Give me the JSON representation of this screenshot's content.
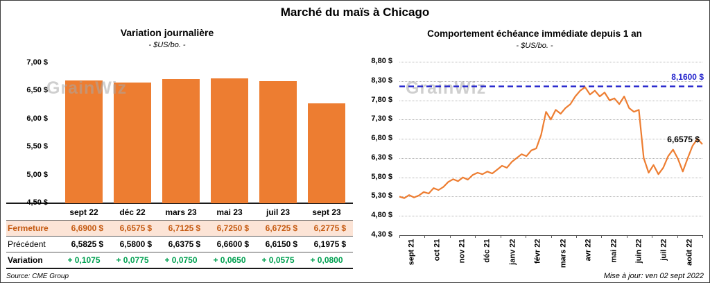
{
  "title": "Marché du maïs à Chicago",
  "watermark": "GrainWiz",
  "footer": {
    "source": "Source: CME Group",
    "updated": "Mise à jour: ven 02 sept 2022"
  },
  "chart_data": [
    {
      "type": "bar",
      "title": "Variation journalière",
      "subtitle": "- $US/bo. -",
      "categories": [
        "sept 22",
        "déc 22",
        "mars 23",
        "mai 23",
        "juil 23",
        "sept 23"
      ],
      "values": [
        6.69,
        6.6575,
        6.7125,
        6.725,
        6.6725,
        6.2775
      ],
      "ylim": [
        4.5,
        7.0
      ],
      "yticks": [
        "7,00 $",
        "6,50 $",
        "6,00 $",
        "5,50 $",
        "5,00 $",
        "4,50 $"
      ],
      "bar_color": "#ED7D31",
      "table": {
        "rows": [
          {
            "label": "Fermeture",
            "style": "fermeture",
            "suffix": "$",
            "values": [
              "6,6900",
              "6,6575",
              "6,7125",
              "6,7250",
              "6,6725",
              "6,2775"
            ]
          },
          {
            "label": "Précédent",
            "style": "precedent",
            "suffix": "$",
            "values": [
              "6,5825",
              "6,5800",
              "6,6375",
              "6,6600",
              "6,6150",
              "6,1975"
            ]
          },
          {
            "label": "Variation",
            "style": "variation",
            "suffix": "",
            "values": [
              "+ 0,1075",
              "+ 0,0775",
              "+ 0,0750",
              "+ 0,0650",
              "+ 0,0575",
              "+ 0,0800"
            ]
          }
        ]
      }
    },
    {
      "type": "line",
      "title": "Comportement échéance immédiate depuis 1 an",
      "subtitle": "- $US/bo. -",
      "ylim": [
        4.3,
        8.8
      ],
      "yticks": [
        "8,80 $",
        "8,30 $",
        "7,80 $",
        "7,30 $",
        "6,80 $",
        "6,30 $",
        "5,80 $",
        "5,30 $",
        "4,80 $",
        "4,30 $"
      ],
      "x_labels": [
        "sept 21",
        "oct 21",
        "nov 21",
        "déc 21",
        "janv 22",
        "févr 22",
        "mars 22",
        "avr 22",
        "mai 22",
        "juin 22",
        "juil 22",
        "août 22"
      ],
      "line_color": "#ED7D31",
      "grid": true,
      "legend_position": "none",
      "reference_line": {
        "value": 8.16,
        "label": "8,1600 $",
        "color": "#2222CC"
      },
      "end_label": {
        "value": 6.6575,
        "text": "6,6575 $"
      },
      "values": [
        5.3,
        5.26,
        5.34,
        5.28,
        5.33,
        5.42,
        5.38,
        5.52,
        5.47,
        5.55,
        5.68,
        5.75,
        5.7,
        5.8,
        5.74,
        5.86,
        5.92,
        5.88,
        5.95,
        5.9,
        6.0,
        6.1,
        6.05,
        6.2,
        6.3,
        6.4,
        6.35,
        6.5,
        6.55,
        6.9,
        7.5,
        7.3,
        7.55,
        7.45,
        7.6,
        7.7,
        7.9,
        8.05,
        8.14,
        7.95,
        8.05,
        7.9,
        8.0,
        7.8,
        7.85,
        7.7,
        7.9,
        7.6,
        7.5,
        7.55,
        6.3,
        5.92,
        6.12,
        5.88,
        6.05,
        6.35,
        6.52,
        6.28,
        5.95,
        6.3,
        6.62,
        6.8,
        6.6575
      ]
    }
  ]
}
